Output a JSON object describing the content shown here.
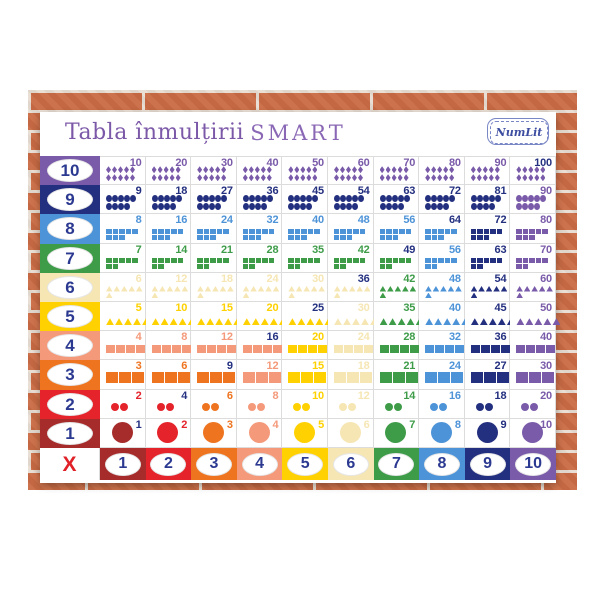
{
  "header": {
    "title": "Tabla înmulțirii",
    "brand": "SMART",
    "logo": "NumLit"
  },
  "corner_symbol": "X",
  "palette": {
    "c1": "#A62C2C",
    "c2": "#E4232B",
    "c3": "#EE7420",
    "c4": "#F4997A",
    "c5": "#FFD101",
    "c6": "#F6E6B4",
    "c7": "#3E9C49",
    "c8": "#4D93D8",
    "c9": "#232F7F",
    "c10": "#7A5BA9",
    "number_navy": "#243181",
    "label_navy": "#2B3990",
    "x_red": "#E02128",
    "title_purple": "#7C59A8",
    "brand_purple": "#8A68B5",
    "logo_blue": "#3D4DA0",
    "brick": "#CA6C45",
    "mortar": "#E9DED2"
  },
  "columns": [
    "1",
    "2",
    "3",
    "4",
    "5",
    "6",
    "7",
    "8",
    "9",
    "10"
  ],
  "rows": [
    {
      "label": "10",
      "value": 10,
      "shape": "diamond",
      "lines": [
        5,
        5
      ],
      "products": [
        10,
        20,
        30,
        40,
        50,
        60,
        70,
        80,
        90,
        100
      ]
    },
    {
      "label": "9",
      "value": 9,
      "shape": "ellipse",
      "lines": [
        5,
        4
      ],
      "products": [
        9,
        18,
        27,
        36,
        45,
        54,
        63,
        72,
        81,
        90
      ]
    },
    {
      "label": "8",
      "value": 8,
      "shape": "small-square",
      "lines": [
        5,
        3
      ],
      "products": [
        8,
        16,
        24,
        32,
        40,
        48,
        56,
        64,
        72,
        80
      ]
    },
    {
      "label": "7",
      "value": 7,
      "shape": "small-square",
      "lines": [
        5,
        2
      ],
      "products": [
        7,
        14,
        21,
        28,
        35,
        42,
        49,
        56,
        63,
        70
      ]
    },
    {
      "label": "6",
      "value": 6,
      "shape": "small-triangle",
      "lines": [
        5,
        1
      ],
      "products": [
        6,
        12,
        18,
        24,
        30,
        36,
        42,
        48,
        54,
        60
      ]
    },
    {
      "label": "5",
      "value": 5,
      "shape": "triangle",
      "lines": [
        5
      ],
      "products": [
        5,
        10,
        15,
        20,
        25,
        30,
        35,
        40,
        45,
        50
      ]
    },
    {
      "label": "4",
      "value": 4,
      "shape": "medium-square",
      "lines": [
        4
      ],
      "products": [
        4,
        8,
        12,
        16,
        20,
        24,
        28,
        32,
        36,
        40
      ]
    },
    {
      "label": "3",
      "value": 3,
      "shape": "large-square",
      "lines": [
        3
      ],
      "products": [
        3,
        6,
        9,
        12,
        15,
        18,
        21,
        24,
        27,
        30
      ]
    },
    {
      "label": "2",
      "value": 2,
      "shape": "circle",
      "lines": [
        2
      ],
      "products": [
        2,
        4,
        6,
        8,
        10,
        12,
        14,
        16,
        18,
        20
      ]
    },
    {
      "label": "1",
      "value": 1,
      "shape": "large-circle",
      "lines": [
        1
      ],
      "products": [
        1,
        2,
        3,
        4,
        5,
        6,
        7,
        8,
        9,
        10
      ]
    }
  ],
  "chart_data": {
    "type": "table",
    "title": "Tabla înmulțirii SMART",
    "row_headers": [
      10,
      9,
      8,
      7,
      6,
      5,
      4,
      3,
      2,
      1
    ],
    "col_headers": [
      1,
      2,
      3,
      4,
      5,
      6,
      7,
      8,
      9,
      10
    ],
    "matrix": [
      [
        10,
        20,
        30,
        40,
        50,
        60,
        70,
        80,
        90,
        100
      ],
      [
        9,
        18,
        27,
        36,
        45,
        54,
        63,
        72,
        81,
        90
      ],
      [
        8,
        16,
        24,
        32,
        40,
        48,
        56,
        64,
        72,
        80
      ],
      [
        7,
        14,
        21,
        28,
        35,
        42,
        49,
        56,
        63,
        70
      ],
      [
        6,
        12,
        18,
        24,
        30,
        36,
        42,
        48,
        54,
        60
      ],
      [
        5,
        10,
        15,
        20,
        25,
        30,
        35,
        40,
        45,
        50
      ],
      [
        4,
        8,
        12,
        16,
        20,
        24,
        28,
        32,
        36,
        40
      ],
      [
        3,
        6,
        9,
        12,
        15,
        18,
        21,
        24,
        27,
        30
      ],
      [
        2,
        4,
        6,
        8,
        10,
        12,
        14,
        16,
        18,
        20
      ],
      [
        1,
        2,
        3,
        4,
        5,
        6,
        7,
        8,
        9,
        10
      ]
    ],
    "notes": "Cell color = color of max(row,col); diagonal square-number values printed in navy"
  }
}
